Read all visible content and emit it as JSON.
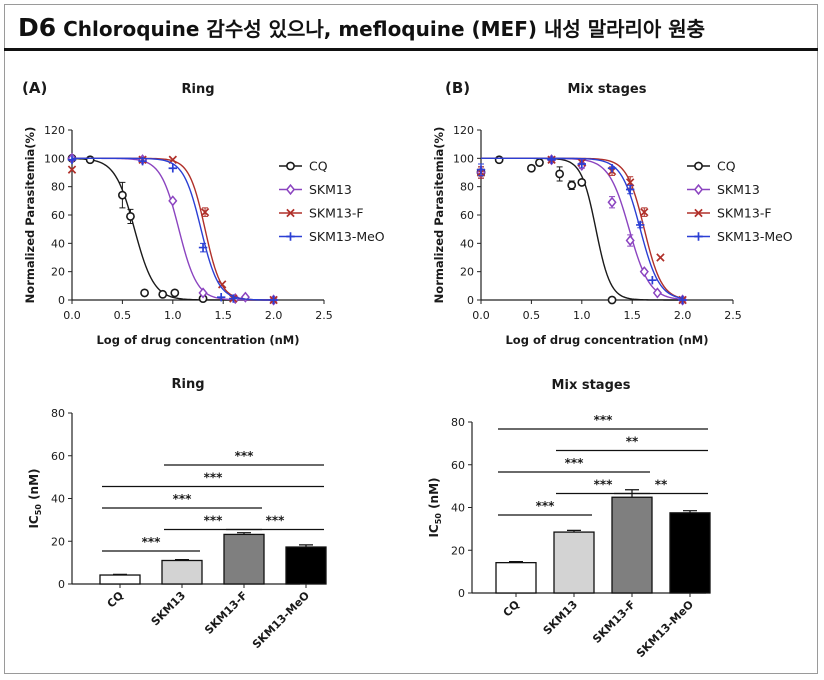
{
  "page": {
    "code": "D6",
    "subtitle": "Chloroquine 감수성 있으나, mefloquine (MEF) 내성 말라리아 원충"
  },
  "chart_data": [
    {
      "panel": "(A)",
      "title": "Ring",
      "type": "line",
      "xlabel": "Log of drug concentration (nM)",
      "ylabel": "Normalized Parasitemia(%)",
      "xlim": [
        0.0,
        2.5
      ],
      "ylim": [
        0,
        120
      ],
      "xticks": [
        "0.0",
        "0.5",
        "1.0",
        "1.5",
        "2.0",
        "2.5"
      ],
      "yticks": [
        "0",
        "20",
        "40",
        "60",
        "80",
        "100",
        "120"
      ],
      "legend_position": "right",
      "series": [
        {
          "name": "CQ",
          "color": "#1a1a1a",
          "marker": "open-circle",
          "ic50_log": 0.62,
          "hill": 4.5,
          "x": [
            0.0,
            0.18,
            0.5,
            0.58,
            0.72,
            0.9,
            1.02,
            1.3
          ],
          "y": [
            100,
            99,
            74,
            59,
            5,
            4,
            5,
            1
          ],
          "err": [
            0,
            0,
            9,
            5,
            0,
            0,
            0,
            0
          ]
        },
        {
          "name": "SKM13",
          "color": "#8b44c0",
          "marker": "diamond",
          "ic50_log": 1.06,
          "hill": 4.8,
          "x": [
            0.0,
            0.7,
            1.0,
            1.3,
            1.62,
            1.72,
            2.0
          ],
          "y": [
            100,
            99,
            70,
            5,
            1,
            2,
            0
          ],
          "err": [
            0,
            0,
            0,
            0,
            0,
            0,
            0
          ]
        },
        {
          "name": "SKM13-F",
          "color": "#b0302a",
          "marker": "cross",
          "ic50_log": 1.32,
          "hill": 5.5,
          "x": [
            0.0,
            0.7,
            1.0,
            1.32,
            1.49,
            1.6,
            2.0
          ],
          "y": [
            92,
            99,
            99,
            62,
            11,
            1,
            0
          ],
          "err": [
            0,
            0,
            0,
            3,
            0,
            0,
            0
          ]
        },
        {
          "name": "SKM13-MeO",
          "color": "#2b3fd4",
          "marker": "plus",
          "ic50_log": 1.28,
          "hill": 5.0,
          "x": [
            0.0,
            0.7,
            1.0,
            1.3,
            1.48,
            1.6,
            2.0
          ],
          "y": [
            99,
            98,
            93,
            37,
            2,
            1,
            0
          ],
          "err": [
            0,
            0,
            0,
            3,
            0,
            0,
            0
          ]
        }
      ]
    },
    {
      "panel": "(B)",
      "title": "Mix stages",
      "type": "line",
      "xlabel": "Log of drug concentration (nM)",
      "ylabel": "Normalized Parasitemia(%)",
      "xlim": [
        0.0,
        2.5
      ],
      "ylim": [
        0,
        120
      ],
      "xticks": [
        "0.0",
        "0.5",
        "1.0",
        "1.5",
        "2.0",
        "2.5"
      ],
      "yticks": [
        "0",
        "20",
        "40",
        "60",
        "80",
        "100",
        "120"
      ],
      "legend_position": "right",
      "series": [
        {
          "name": "CQ",
          "color": "#1a1a1a",
          "marker": "open-circle",
          "ic50_log": 1.14,
          "hill": 6.0,
          "x": [
            0.0,
            0.18,
            0.5,
            0.58,
            0.78,
            0.9,
            1.0,
            1.3
          ],
          "y": [
            90,
            99,
            93,
            97,
            89,
            81,
            83,
            0
          ],
          "err": [
            4,
            0,
            0,
            0,
            5,
            3,
            2,
            0
          ]
        },
        {
          "name": "SKM13",
          "color": "#8b44c0",
          "marker": "diamond",
          "ic50_log": 1.47,
          "hill": 4.3,
          "x": [
            0.0,
            0.7,
            1.0,
            1.3,
            1.48,
            1.62,
            1.75,
            2.0
          ],
          "y": [
            90,
            99,
            95,
            69,
            42,
            20,
            5,
            0
          ],
          "err": [
            4,
            0,
            2,
            4,
            4,
            0,
            0,
            0
          ]
        },
        {
          "name": "SKM13-F",
          "color": "#b0302a",
          "marker": "cross",
          "ic50_log": 1.62,
          "hill": 5.0,
          "x": [
            0.0,
            0.7,
            1.0,
            1.3,
            1.48,
            1.62,
            1.78,
            2.0
          ],
          "y": [
            90,
            99,
            97,
            91,
            83,
            62,
            30,
            0
          ],
          "err": [
            4,
            0,
            0,
            3,
            4,
            3,
            0,
            0
          ]
        },
        {
          "name": "SKM13-MeO",
          "color": "#2b3fd4",
          "marker": "plus",
          "ic50_log": 1.58,
          "hill": 4.6,
          "x": [
            0.0,
            0.7,
            1.0,
            1.3,
            1.48,
            1.58,
            1.7,
            2.0
          ],
          "y": [
            92,
            99,
            96,
            93,
            78,
            53,
            14,
            0
          ],
          "err": [
            4,
            0,
            0,
            0,
            3,
            2,
            0,
            0
          ]
        }
      ]
    },
    {
      "title": "Ring",
      "type": "bar",
      "ylabel_main": "IC",
      "ylabel_sub": "50",
      "ylabel_unit": " (nM)",
      "ylim": [
        0,
        80
      ],
      "yticks": [
        "0",
        "20",
        "40",
        "60",
        "80"
      ],
      "categories": [
        "CQ",
        "SKM13",
        "SKM13-F",
        "SKM13-MeO"
      ],
      "values": [
        4.2,
        11.0,
        23.2,
        17.3
      ],
      "errors": [
        0.3,
        0.4,
        0.8,
        1.0
      ],
      "colors": [
        "#ffffff",
        "#d3d3d3",
        "#7f7f7f",
        "#000000"
      ],
      "significance": [
        {
          "from": 0,
          "to": 1,
          "label": "***",
          "tier": 0
        },
        {
          "from": 1,
          "to": 2,
          "label": "***",
          "tier": 1
        },
        {
          "from": 2,
          "to": 3,
          "label": "***",
          "tier": 1
        },
        {
          "from": 0,
          "to": 2,
          "label": "***",
          "tier": 2
        },
        {
          "from": 0,
          "to": 3,
          "label": "***",
          "tier": 3
        },
        {
          "from": 1,
          "to": 3,
          "label": "***",
          "tier": 4
        }
      ]
    },
    {
      "title": "Mix stages",
      "type": "bar",
      "ylabel_main": "IC",
      "ylabel_sub": "50",
      "ylabel_unit": " (nM)",
      "ylim": [
        0,
        80
      ],
      "yticks": [
        "0",
        "20",
        "40",
        "60",
        "80"
      ],
      "categories": [
        "CQ",
        "SKM13",
        "SKM13-F",
        "SKM13-MeO"
      ],
      "values": [
        14.2,
        28.5,
        44.8,
        37.5
      ],
      "errors": [
        0.5,
        0.8,
        3.5,
        1.0
      ],
      "colors": [
        "#ffffff",
        "#d3d3d3",
        "#7f7f7f",
        "#000000"
      ],
      "significance": [
        {
          "from": 0,
          "to": 1,
          "label": "***",
          "tier": 0
        },
        {
          "from": 1,
          "to": 2,
          "label": "***",
          "tier": 1
        },
        {
          "from": 2,
          "to": 3,
          "label": "**",
          "tier": 1
        },
        {
          "from": 0,
          "to": 2,
          "label": "***",
          "tier": 2
        },
        {
          "from": 1,
          "to": 3,
          "label": "**",
          "tier": 3
        },
        {
          "from": 0,
          "to": 3,
          "label": "***",
          "tier": 4
        }
      ]
    }
  ]
}
